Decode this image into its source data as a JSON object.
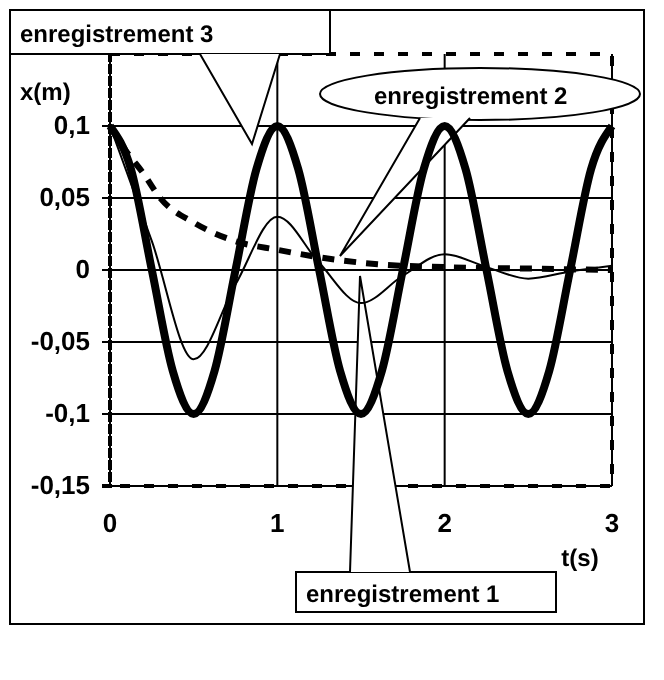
{
  "chart_data": {
    "type": "line",
    "xlabel": "t(s)",
    "ylabel": "x(m)",
    "xlim": [
      0,
      3
    ],
    "xticks": [
      0,
      1,
      2,
      3
    ],
    "ylim": [
      -0.15,
      0.15
    ],
    "yticks": [
      {
        "value": -0.15,
        "label": "-0,15"
      },
      {
        "value": -0.1,
        "label": "-0,1"
      },
      {
        "value": -0.05,
        "label": "-0,05"
      },
      {
        "value": 0,
        "label": "0"
      },
      {
        "value": 0.05,
        "label": "0,05"
      },
      {
        "value": 0.1,
        "label": "0,1"
      }
    ],
    "grid": true,
    "marker": "none",
    "series": [
      {
        "name": "enregistrement 1",
        "color": "#000000",
        "line_style": "solid",
        "x": [
          0,
          0.125,
          0.25,
          0.375,
          0.5,
          0.625,
          0.75,
          0.875,
          1,
          1.125,
          1.25,
          1.375,
          1.5,
          1.625,
          1.75,
          1.875,
          2,
          2.125,
          2.25,
          2.375,
          2.5,
          2.625,
          2.75,
          2.875,
          3
        ],
        "values": [
          0.1,
          0.07,
          0,
          -0.07,
          -0.1,
          -0.07,
          0,
          0.07,
          0.1,
          0.07,
          0,
          -0.07,
          -0.1,
          -0.07,
          0,
          0.07,
          0.1,
          0.07,
          0,
          -0.07,
          -0.1,
          -0.07,
          0,
          0.07,
          0.1
        ]
      },
      {
        "name": "enregistrement 2",
        "color": "#000000",
        "line_style": "dashed",
        "x": [
          0,
          0.1,
          0.2,
          0.3,
          0.5,
          0.75,
          1,
          1.3,
          1.6,
          2,
          2.5,
          3
        ],
        "values": [
          0.1,
          0.082,
          0.067,
          0.05,
          0.033,
          0.02,
          0.014,
          0.008,
          0.004,
          0.002,
          0.001,
          0
        ]
      },
      {
        "name": "enregistrement 3",
        "color": "#000000",
        "line_style": "solid",
        "x": [
          0,
          0.25,
          0.5,
          0.75,
          1,
          1.25,
          1.5,
          1.75,
          2,
          2.25,
          2.5,
          2.75,
          3
        ],
        "values": [
          0.1,
          0.02,
          -0.062,
          -0.01,
          0.037,
          0.005,
          -0.023,
          -0.004,
          0.011,
          0.002,
          -0.006,
          -0.001,
          0.003
        ]
      }
    ]
  }
}
